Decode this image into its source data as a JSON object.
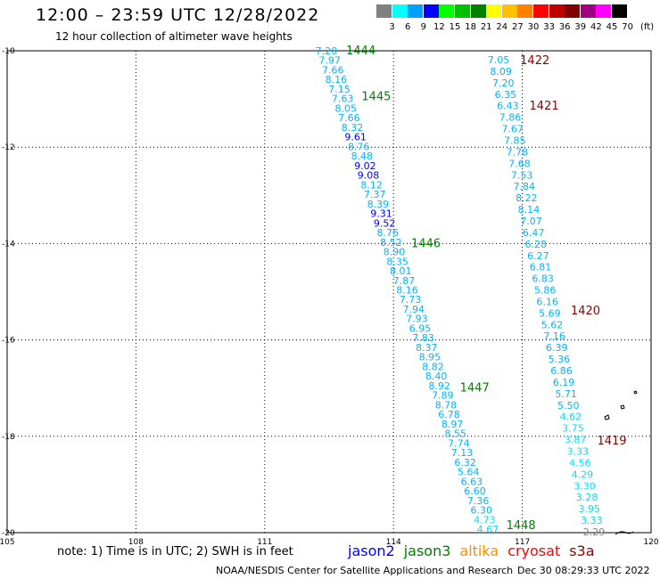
{
  "header": {
    "title": "12:00 – 23:59 UTC 12/28/2022",
    "subtitle": "12 hour collection of altimeter wave heights"
  },
  "color_scale": {
    "unit_label": "(ft)",
    "bins": [
      {
        "label": "3",
        "color": "#808080"
      },
      {
        "label": "6",
        "color": "#00ffff"
      },
      {
        "label": "9",
        "color": "#00a0ff"
      },
      {
        "label": "12",
        "color": "#0000ff"
      },
      {
        "label": "15",
        "color": "#00ff00"
      },
      {
        "label": "18",
        "color": "#00c000"
      },
      {
        "label": "21",
        "color": "#008000"
      },
      {
        "label": "24",
        "color": "#ffff00"
      },
      {
        "label": "27",
        "color": "#ffc000"
      },
      {
        "label": "30",
        "color": "#ff8000"
      },
      {
        "label": "33",
        "color": "#ff0000"
      },
      {
        "label": "36",
        "color": "#c00000"
      },
      {
        "label": "39",
        "color": "#800000"
      },
      {
        "label": "42",
        "color": "#a00080"
      },
      {
        "label": "45",
        "color": "#ff00ff"
      },
      {
        "label": "70",
        "color": "#000000"
      }
    ]
  },
  "map": {
    "lon_ticks": [
      "105",
      "108",
      "111",
      "114",
      "117",
      "120"
    ],
    "lat_ticks": [
      "-10",
      "-12",
      "-14",
      "-16",
      "-18",
      "-20"
    ],
    "track_colors": {
      "light_blue": "#00b4ff",
      "cyan": "#00e0ff",
      "dark_blue": "#0000ff",
      "gray": "#808080",
      "green_label": "#008000",
      "red_label": "#8b0000"
    },
    "track_left": [
      {
        "v": "7.20",
        "c": "light_blue"
      },
      {
        "v": "7.97",
        "c": "light_blue"
      },
      {
        "v": "7.66",
        "c": "light_blue"
      },
      {
        "v": "8.16",
        "c": "light_blue"
      },
      {
        "v": "7.15",
        "c": "light_blue"
      },
      {
        "v": "7.63",
        "c": "light_blue"
      },
      {
        "v": "8.05",
        "c": "light_blue"
      },
      {
        "v": "7.66",
        "c": "light_blue"
      },
      {
        "v": "8.32",
        "c": "light_blue"
      },
      {
        "v": "9.61",
        "c": "dark_blue"
      },
      {
        "v": "8.76",
        "c": "light_blue"
      },
      {
        "v": "8.48",
        "c": "light_blue"
      },
      {
        "v": "9.02",
        "c": "dark_blue"
      },
      {
        "v": "9.08",
        "c": "dark_blue"
      },
      {
        "v": "8.12",
        "c": "light_blue"
      },
      {
        "v": "7.37",
        "c": "light_blue"
      },
      {
        "v": "8.39",
        "c": "light_blue"
      },
      {
        "v": "9.31",
        "c": "dark_blue"
      },
      {
        "v": "9.52",
        "c": "dark_blue"
      },
      {
        "v": "8.76",
        "c": "light_blue"
      },
      {
        "v": "8.52",
        "c": "light_blue"
      },
      {
        "v": "8.90",
        "c": "light_blue"
      },
      {
        "v": "8.35",
        "c": "light_blue"
      },
      {
        "v": "8.01",
        "c": "light_blue"
      },
      {
        "v": "7.87",
        "c": "light_blue"
      },
      {
        "v": "8.16",
        "c": "light_blue"
      },
      {
        "v": "7.73",
        "c": "light_blue"
      },
      {
        "v": "7.94",
        "c": "light_blue"
      },
      {
        "v": "7.93",
        "c": "light_blue"
      },
      {
        "v": "6.95",
        "c": "light_blue"
      },
      {
        "v": "7.83",
        "c": "light_blue"
      },
      {
        "v": "8.37",
        "c": "light_blue"
      },
      {
        "v": "8.95",
        "c": "light_blue"
      },
      {
        "v": "8.82",
        "c": "light_blue"
      },
      {
        "v": "8.40",
        "c": "light_blue"
      },
      {
        "v": "8.92",
        "c": "light_blue"
      },
      {
        "v": "7.89",
        "c": "light_blue"
      },
      {
        "v": "8.78",
        "c": "light_blue"
      },
      {
        "v": "6.78",
        "c": "light_blue"
      },
      {
        "v": "8.97",
        "c": "light_blue"
      },
      {
        "v": "8.55",
        "c": "light_blue"
      },
      {
        "v": "7.74",
        "c": "light_blue"
      },
      {
        "v": "7.13",
        "c": "light_blue"
      },
      {
        "v": "6.32",
        "c": "light_blue"
      },
      {
        "v": "5.64",
        "c": "light_blue"
      },
      {
        "v": "6.63",
        "c": "light_blue"
      },
      {
        "v": "6.60",
        "c": "light_blue"
      },
      {
        "v": "7.36",
        "c": "light_blue"
      },
      {
        "v": "6.30",
        "c": "light_blue"
      },
      {
        "v": "4.73",
        "c": "cyan"
      },
      {
        "v": "4.67",
        "c": "cyan"
      }
    ],
    "track_right": [
      {
        "v": "7.05",
        "c": "light_blue"
      },
      {
        "v": "8.09",
        "c": "light_blue"
      },
      {
        "v": "7.20",
        "c": "light_blue"
      },
      {
        "v": "6.35",
        "c": "light_blue"
      },
      {
        "v": "6.43",
        "c": "light_blue"
      },
      {
        "v": "7.86",
        "c": "light_blue"
      },
      {
        "v": "7.67",
        "c": "light_blue"
      },
      {
        "v": "7.85",
        "c": "light_blue"
      },
      {
        "v": "7.78",
        "c": "light_blue"
      },
      {
        "v": "7.68",
        "c": "light_blue"
      },
      {
        "v": "7.53",
        "c": "light_blue"
      },
      {
        "v": "7.84",
        "c": "light_blue"
      },
      {
        "v": "8.22",
        "c": "light_blue"
      },
      {
        "v": "8.14",
        "c": "light_blue"
      },
      {
        "v": "7.07",
        "c": "light_blue"
      },
      {
        "v": "6.47",
        "c": "light_blue"
      },
      {
        "v": "6.28",
        "c": "light_blue"
      },
      {
        "v": "6.27",
        "c": "light_blue"
      },
      {
        "v": "6.81",
        "c": "light_blue"
      },
      {
        "v": "6.83",
        "c": "light_blue"
      },
      {
        "v": "5.86",
        "c": "light_blue"
      },
      {
        "v": "6.16",
        "c": "light_blue"
      },
      {
        "v": "5.69",
        "c": "light_blue"
      },
      {
        "v": "5.62",
        "c": "light_blue"
      },
      {
        "v": "7.16",
        "c": "light_blue"
      },
      {
        "v": "6.39",
        "c": "light_blue"
      },
      {
        "v": "5.36",
        "c": "light_blue"
      },
      {
        "v": "6.86",
        "c": "light_blue"
      },
      {
        "v": "6.19",
        "c": "light_blue"
      },
      {
        "v": "5.71",
        "c": "light_blue"
      },
      {
        "v": "5.50",
        "c": "light_blue"
      },
      {
        "v": "4.62",
        "c": "cyan"
      },
      {
        "v": "3.75",
        "c": "cyan"
      },
      {
        "v": "3.87",
        "c": "cyan"
      },
      {
        "v": "3.33",
        "c": "cyan"
      },
      {
        "v": "4.56",
        "c": "cyan"
      },
      {
        "v": "4.29",
        "c": "cyan"
      },
      {
        "v": "3.30",
        "c": "cyan"
      },
      {
        "v": "3.28",
        "c": "cyan"
      },
      {
        "v": "3.95",
        "c": "cyan"
      },
      {
        "v": "3.33",
        "c": "cyan"
      },
      {
        "v": "2.29",
        "c": "gray"
      }
    ],
    "time_labels_left": [
      {
        "t": "1444",
        "lat": -10.0
      },
      {
        "t": "1445",
        "lat": -10.95
      },
      {
        "t": "1446",
        "lat": -14.0
      },
      {
        "t": "1447",
        "lat": -17.0
      },
      {
        "t": "1448",
        "lat": -19.85
      }
    ],
    "time_labels_right": [
      {
        "t": "1422",
        "lat": -10.2
      },
      {
        "t": "1421",
        "lat": -11.15
      },
      {
        "t": "1420",
        "lat": -15.4
      },
      {
        "t": "1419",
        "lat": -18.1
      }
    ]
  },
  "footer": {
    "note": "note:  1) Time is in UTC;  2) SWH is in feet",
    "satellites": [
      {
        "name": "jason2",
        "color": "#0000ff"
      },
      {
        "name": "jason3",
        "color": "#008000"
      },
      {
        "name": "altika",
        "color": "#ff8c00"
      },
      {
        "name": "cryosat",
        "color": "#ff0000"
      },
      {
        "name": "s3a",
        "color": "#8b0000"
      }
    ],
    "credit": "NOAA/NESDIS Center for Satellite Applications and Research",
    "timestamp": "Dec 30 08:29:33 UTC 2022"
  }
}
